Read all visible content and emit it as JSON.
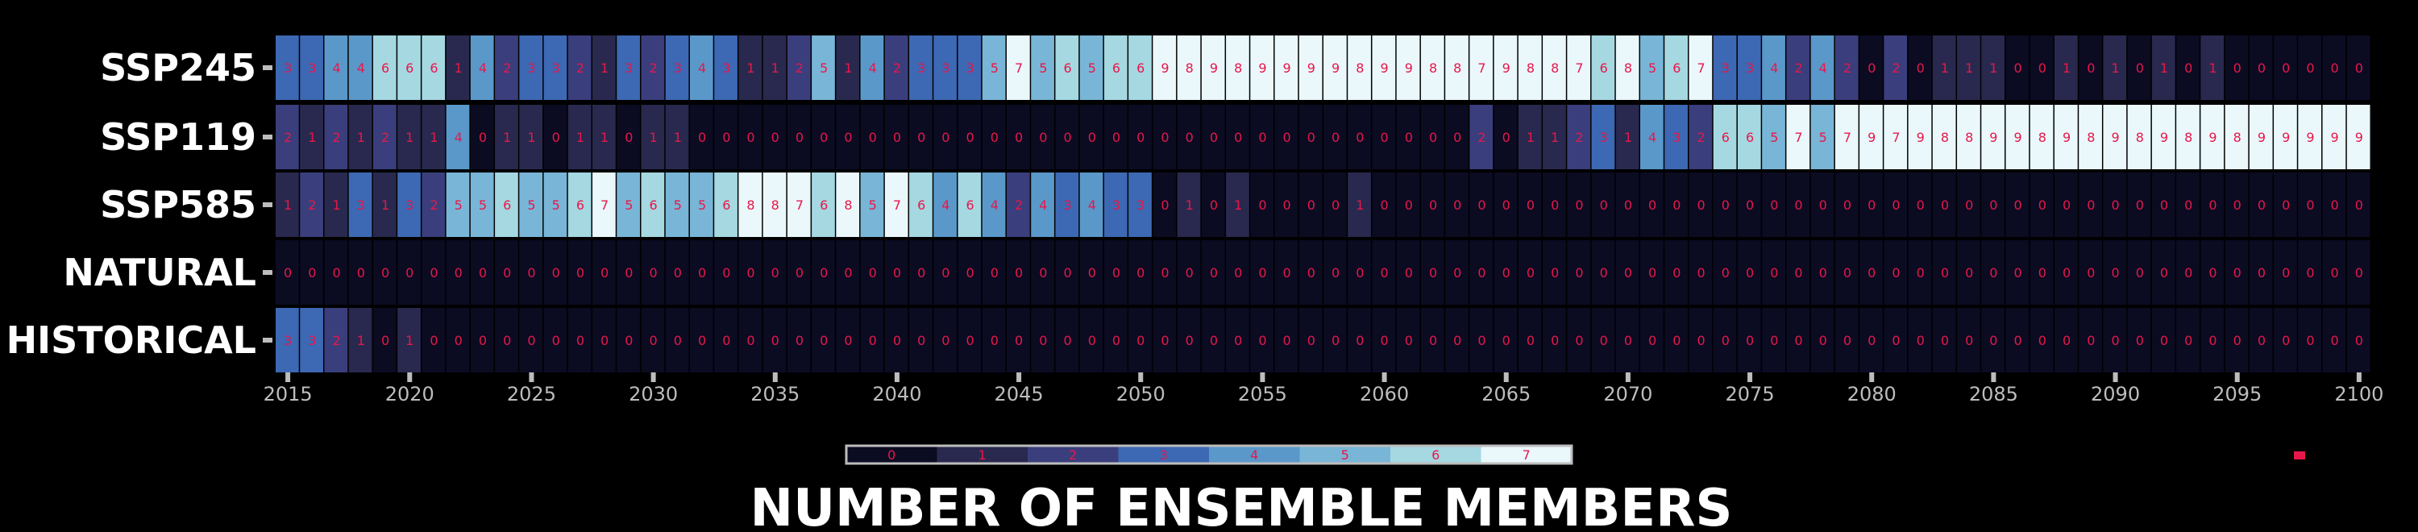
{
  "chart_data": {
    "type": "heatmap",
    "title": "NUMBER OF ENSEMBLE MEMBERS",
    "rows": [
      "SSP245",
      "SSP119",
      "SSP585",
      "NATURAL",
      "HISTORICAL"
    ],
    "x_start": 2015,
    "x_end": 2100,
    "x_ticks": [
      "2015",
      "2020",
      "2025",
      "2030",
      "2035",
      "2040",
      "2045",
      "2050",
      "2055",
      "2060",
      "2065",
      "2070",
      "2075",
      "2080",
      "2085",
      "2090",
      "2095",
      "2100"
    ],
    "colorbar_labels": [
      "0",
      "1",
      "2",
      "3",
      "4",
      "5",
      "6",
      "7"
    ],
    "colors": [
      "#0b0b22",
      "#29294f",
      "#3a3e7c",
      "#3d68b3",
      "#5a98c9",
      "#79b5d6",
      "#a5d8e1",
      "#eaf8fb"
    ],
    "values": {
      "SSP245": [
        3,
        3,
        4,
        4,
        6,
        6,
        6,
        1,
        4,
        2,
        3,
        3,
        2,
        1,
        3,
        2,
        3,
        4,
        3,
        1,
        1,
        2,
        5,
        1,
        4,
        2,
        3,
        3,
        3,
        5,
        7,
        5,
        6,
        5,
        6,
        6,
        9,
        8,
        9,
        8,
        9,
        9,
        9,
        9,
        8,
        9,
        9,
        8,
        8,
        7,
        9,
        8,
        8,
        7,
        6,
        8,
        5,
        6,
        7,
        3,
        3,
        4,
        2,
        4,
        2,
        0,
        2,
        0,
        1,
        1,
        1,
        0,
        0,
        1,
        0,
        1,
        0,
        1,
        0,
        1,
        0,
        0,
        0,
        0,
        0,
        0
      ],
      "SSP119": [
        2,
        1,
        2,
        1,
        2,
        1,
        1,
        4,
        0,
        1,
        1,
        0,
        1,
        1,
        0,
        1,
        1,
        0,
        0,
        0,
        0,
        0,
        0,
        0,
        0,
        0,
        0,
        0,
        0,
        0,
        0,
        0,
        0,
        0,
        0,
        0,
        0,
        0,
        0,
        0,
        0,
        0,
        0,
        0,
        0,
        0,
        0,
        0,
        0,
        2,
        0,
        1,
        1,
        2,
        3,
        1,
        4,
        3,
        2,
        6,
        6,
        5,
        7,
        5,
        7,
        9,
        7,
        9,
        8,
        8,
        9,
        9,
        8,
        9,
        8,
        9,
        8,
        9,
        8,
        9,
        8,
        9,
        9,
        9,
        9,
        9
      ],
      "SSP585": [
        1,
        2,
        1,
        3,
        1,
        3,
        2,
        5,
        5,
        6,
        5,
        5,
        6,
        7,
        5,
        6,
        5,
        5,
        6,
        8,
        8,
        7,
        6,
        8,
        5,
        7,
        6,
        4,
        6,
        4,
        2,
        4,
        3,
        4,
        3,
        3,
        0,
        1,
        0,
        1,
        0,
        0,
        0,
        0,
        1,
        0,
        0,
        0,
        0,
        0,
        0,
        0,
        0,
        0,
        0,
        0,
        0,
        0,
        0,
        0,
        0,
        0,
        0,
        0,
        0,
        0,
        0,
        0,
        0,
        0,
        0,
        0,
        0,
        0,
        0,
        0,
        0,
        0,
        0,
        0,
        0,
        0,
        0,
        0,
        0,
        0
      ],
      "NATURAL": [
        0,
        0,
        0,
        0,
        0,
        0,
        0,
        0,
        0,
        0,
        0,
        0,
        0,
        0,
        0,
        0,
        0,
        0,
        0,
        0,
        0,
        0,
        0,
        0,
        0,
        0,
        0,
        0,
        0,
        0,
        0,
        0,
        0,
        0,
        0,
        0,
        0,
        0,
        0,
        0,
        0,
        0,
        0,
        0,
        0,
        0,
        0,
        0,
        0,
        0,
        0,
        0,
        0,
        0,
        0,
        0,
        0,
        0,
        0,
        0,
        0,
        0,
        0,
        0,
        0,
        0,
        0,
        0,
        0,
        0,
        0,
        0,
        0,
        0,
        0,
        0,
        0,
        0,
        0,
        0,
        0,
        0,
        0,
        0,
        0,
        0
      ],
      "HISTORICAL": [
        3,
        3,
        2,
        1,
        0,
        1,
        0,
        0,
        0,
        0,
        0,
        0,
        0,
        0,
        0,
        0,
        0,
        0,
        0,
        0,
        0,
        0,
        0,
        0,
        0,
        0,
        0,
        0,
        0,
        0,
        0,
        0,
        0,
        0,
        0,
        0,
        0,
        0,
        0,
        0,
        0,
        0,
        0,
        0,
        0,
        0,
        0,
        0,
        0,
        0,
        0,
        0,
        0,
        0,
        0,
        0,
        0,
        0,
        0,
        0,
        0,
        0,
        0,
        0,
        0,
        0,
        0,
        0,
        0,
        0,
        0,
        0,
        0,
        0,
        0,
        0,
        0,
        0,
        0,
        0,
        0,
        0,
        0,
        0,
        0,
        0
      ]
    }
  }
}
